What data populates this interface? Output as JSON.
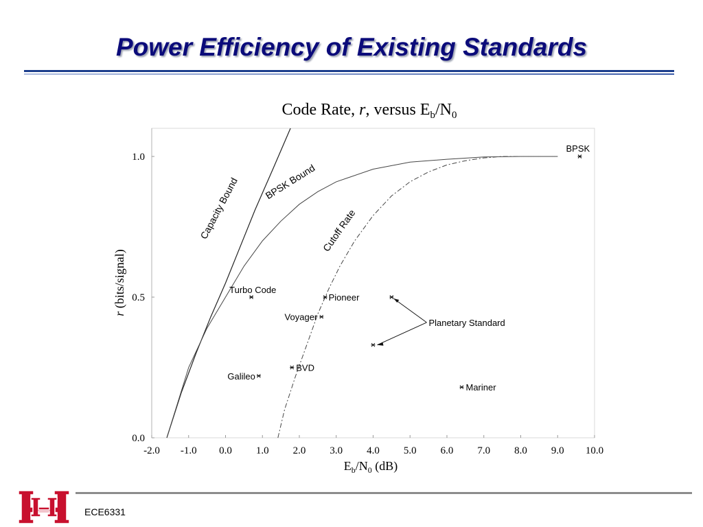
{
  "slide": {
    "title": "Power Efficiency of Existing Standards",
    "footer": "ECE6331"
  },
  "colors": {
    "title": "#0b0b7a",
    "rule": "#1b3d8c",
    "logo": "#c8102e"
  },
  "chart_data": {
    "type": "scatter",
    "title": {
      "main": "Code Rate, ",
      "var": "r",
      "mid": ", versus E",
      "sub1": "b",
      "slash": "/N",
      "sub2": "0"
    },
    "xlabel": {
      "main": "E",
      "sub1": "b",
      "mid": "/N",
      "sub2": "0",
      "unit": " (dB)"
    },
    "ylabel": {
      "var": "r",
      "rest": " (bits/signal)"
    },
    "xlim": [
      -2.0,
      10.0
    ],
    "ylim": [
      0.0,
      1.1
    ],
    "xticks": [
      "-2.0",
      "-1.0",
      "0.0",
      "1.0",
      "2.0",
      "3.0",
      "4.0",
      "5.0",
      "6.0",
      "7.0",
      "8.0",
      "9.0",
      "10.0"
    ],
    "yticks": [
      "0.0",
      "0.5",
      "1.0"
    ],
    "curves": [
      {
        "name": "Capacity Bound",
        "style": "solid",
        "points": [
          [
            -1.59,
            0.0
          ],
          [
            -1.2,
            0.16
          ],
          [
            -0.8,
            0.3
          ],
          [
            -0.4,
            0.43
          ],
          [
            0.0,
            0.55
          ],
          [
            0.4,
            0.68
          ],
          [
            0.8,
            0.81
          ],
          [
            1.3,
            0.96
          ],
          [
            1.76,
            1.1
          ]
        ]
      },
      {
        "name": "BPSK Bound",
        "style": "solid",
        "points": [
          [
            -1.59,
            0.0
          ],
          [
            -1.0,
            0.25
          ],
          [
            -0.5,
            0.39
          ],
          [
            0.0,
            0.5
          ],
          [
            0.5,
            0.61
          ],
          [
            1.0,
            0.7
          ],
          [
            1.5,
            0.77
          ],
          [
            2.0,
            0.83
          ],
          [
            2.5,
            0.875
          ],
          [
            3.0,
            0.91
          ],
          [
            4.0,
            0.955
          ],
          [
            5.0,
            0.98
          ],
          [
            6.0,
            0.99
          ],
          [
            7.0,
            0.998
          ],
          [
            8.0,
            1.0
          ],
          [
            9.0,
            1.0
          ]
        ]
      },
      {
        "name": "Cutoff Rate",
        "style": "dashed",
        "points": [
          [
            1.42,
            0.0
          ],
          [
            1.6,
            0.1
          ],
          [
            1.9,
            0.22
          ],
          [
            2.2,
            0.33
          ],
          [
            2.5,
            0.44
          ],
          [
            2.8,
            0.53
          ],
          [
            3.1,
            0.61
          ],
          [
            3.5,
            0.7
          ],
          [
            4.0,
            0.79
          ],
          [
            4.5,
            0.86
          ],
          [
            5.0,
            0.91
          ],
          [
            5.5,
            0.945
          ],
          [
            6.0,
            0.97
          ],
          [
            6.5,
            0.985
          ],
          [
            7.0,
            0.995
          ],
          [
            7.5,
            1.0
          ],
          [
            8.0,
            1.0
          ],
          [
            9.0,
            1.0
          ]
        ]
      }
    ],
    "points": [
      {
        "label": "Turbo Code",
        "x": 0.7,
        "y": 0.5
      },
      {
        "label": "Pioneer",
        "x": 2.7,
        "y": 0.5
      },
      {
        "label": "Voyager",
        "x": 2.6,
        "y": 0.43
      },
      {
        "label": "Galileo",
        "x": 0.9,
        "y": 0.22
      },
      {
        "label": "BVD",
        "x": 1.8,
        "y": 0.25
      },
      {
        "label": "Mariner",
        "x": 6.4,
        "y": 0.18
      },
      {
        "label": "BPSK",
        "x": 9.6,
        "y": 1.0
      },
      {
        "label": "Planetary Standard",
        "x": 4.5,
        "y": 0.5
      },
      {
        "label": "Planetary Standard",
        "x": 4.0,
        "y": 0.33
      }
    ],
    "annotation": "Planetary Standard",
    "grid": false
  }
}
